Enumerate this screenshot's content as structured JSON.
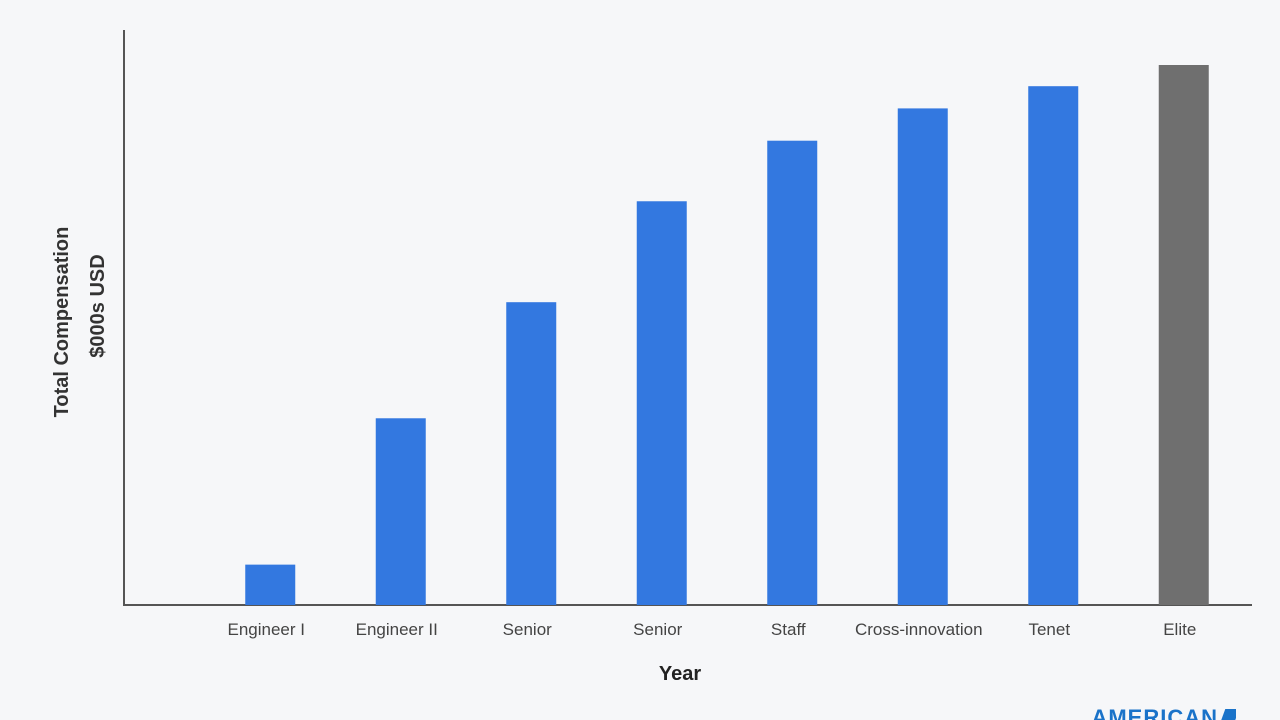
{
  "chart_data": {
    "type": "bar",
    "title": "",
    "xlabel": "Year",
    "ylabel": "Total Compensation",
    "ylabel2": "$000s USD",
    "categories": [
      "Engineer I",
      "Engineer II",
      "Senior",
      "Senior",
      "Staff",
      "Cross-innovation",
      "Tenet",
      "Elite"
    ],
    "values": [
      40,
      185,
      300,
      400,
      460,
      492,
      514,
      535
    ],
    "colors": [
      "#3378e0",
      "#3378e0",
      "#3378e0",
      "#3378e0",
      "#3378e0",
      "#3378e0",
      "#3378e0",
      "#6f6f6f"
    ],
    "ylim": [
      0,
      535
    ],
    "grid": false,
    "legend": "none"
  },
  "logo": {
    "text": "AMERICAN"
  }
}
